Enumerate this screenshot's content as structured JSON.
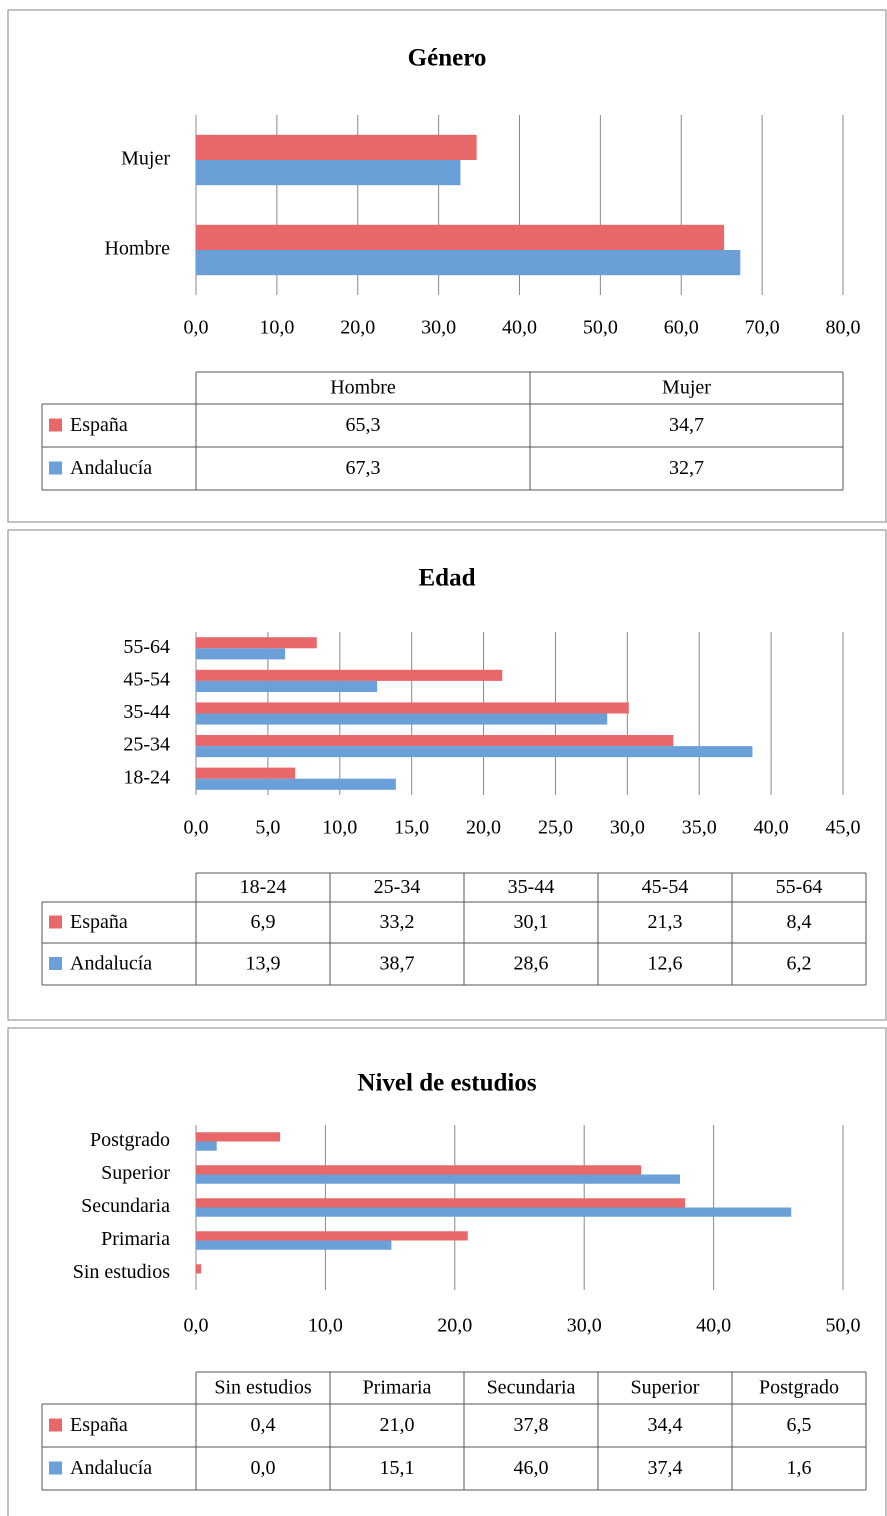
{
  "chart_data": [
    {
      "type": "bar",
      "orientation": "horizontal",
      "title": "Género",
      "categories": [
        "Hombre",
        "Mujer"
      ],
      "series": [
        {
          "name": "España",
          "color": "#e8686a",
          "values": [
            65.3,
            34.7
          ],
          "value_labels": [
            "65,3",
            "34,7"
          ]
        },
        {
          "name": "Andalucía",
          "color": "#6a9fd8",
          "values": [
            67.3,
            32.7
          ],
          "value_labels": [
            "67,3",
            "32,7"
          ]
        }
      ],
      "xlim": [
        0,
        80
      ],
      "xticks": [
        {
          "value": 0,
          "label": "0,0"
        },
        {
          "value": 10,
          "label": "10,0"
        },
        {
          "value": 20,
          "label": "20,0"
        },
        {
          "value": 30,
          "label": "30,0"
        },
        {
          "value": 40,
          "label": "40,0"
        },
        {
          "value": 50,
          "label": "50,0"
        },
        {
          "value": 60,
          "label": "60,0"
        },
        {
          "value": 70,
          "label": "70,0"
        },
        {
          "value": 80,
          "label": "80,0"
        }
      ],
      "grid": true
    },
    {
      "type": "bar",
      "orientation": "horizontal",
      "title": "Edad",
      "categories": [
        "18-24",
        "25-34",
        "35-44",
        "45-54",
        "55-64"
      ],
      "series": [
        {
          "name": "España",
          "color": "#e8686a",
          "values": [
            6.9,
            33.2,
            30.1,
            21.3,
            8.4
          ],
          "value_labels": [
            "6,9",
            "33,2",
            "30,1",
            "21,3",
            "8,4"
          ]
        },
        {
          "name": "Andalucía",
          "color": "#6a9fd8",
          "values": [
            13.9,
            38.7,
            28.6,
            12.6,
            6.2
          ],
          "value_labels": [
            "13,9",
            "38,7",
            "28,6",
            "12,6",
            "6,2"
          ]
        }
      ],
      "xlim": [
        0,
        45
      ],
      "xticks": [
        {
          "value": 0,
          "label": "0,0"
        },
        {
          "value": 5,
          "label": "5,0"
        },
        {
          "value": 10,
          "label": "10,0"
        },
        {
          "value": 15,
          "label": "15,0"
        },
        {
          "value": 20,
          "label": "20,0"
        },
        {
          "value": 25,
          "label": "25,0"
        },
        {
          "value": 30,
          "label": "30,0"
        },
        {
          "value": 35,
          "label": "35,0"
        },
        {
          "value": 40,
          "label": "40,0"
        },
        {
          "value": 45,
          "label": "45,0"
        }
      ],
      "grid": true
    },
    {
      "type": "bar",
      "orientation": "horizontal",
      "title": "Nivel de estudios",
      "categories": [
        "Sin estudios",
        "Primaria",
        "Secundaria",
        "Superior",
        "Postgrado"
      ],
      "series": [
        {
          "name": "España",
          "color": "#e8686a",
          "values": [
            0.4,
            21.0,
            37.8,
            34.4,
            6.5
          ],
          "value_labels": [
            "0,4",
            "21,0",
            "37,8",
            "34,4",
            "6,5"
          ]
        },
        {
          "name": "Andalucía",
          "color": "#6a9fd8",
          "values": [
            0.0,
            15.1,
            46.0,
            37.4,
            1.6
          ],
          "value_labels": [
            "0,0",
            "15,1",
            "46,0",
            "37,4",
            "1,6"
          ]
        }
      ],
      "xlim": [
        0,
        50
      ],
      "xticks": [
        {
          "value": 0,
          "label": "0,0"
        },
        {
          "value": 10,
          "label": "10,0"
        },
        {
          "value": 20,
          "label": "20,0"
        },
        {
          "value": 30,
          "label": "30,0"
        },
        {
          "value": 40,
          "label": "40,0"
        },
        {
          "value": 50,
          "label": "50,0"
        }
      ],
      "grid": true
    }
  ]
}
